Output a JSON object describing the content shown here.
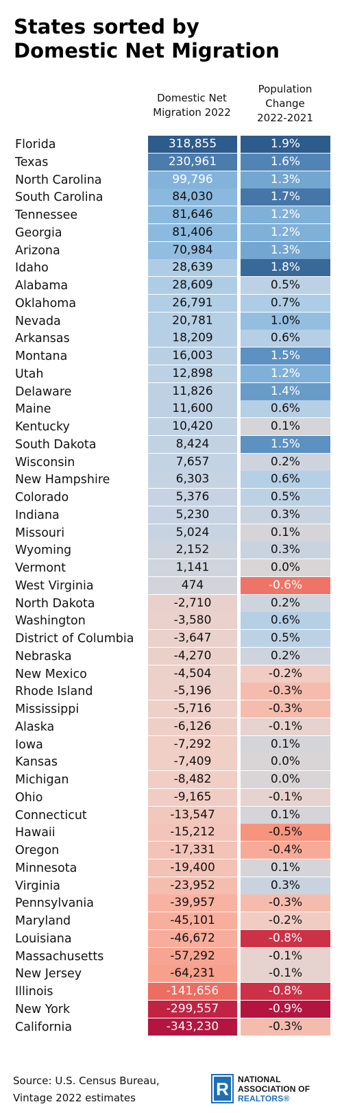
{
  "title_line1": "States sorted by",
  "title_line2": "Domestic Net Migration",
  "header_migration_line1": "Domestic Net",
  "header_migration_line2": "Migration 2022",
  "header_population_line1": "Population",
  "header_population_line2": "Change",
  "header_population_line3": "2022-2021",
  "source_line1": "Source: U.S. Census Bureau,",
  "source_line2": "Vintage 2022 estimates",
  "logo": {
    "line1": "NATIONAL",
    "line2": "ASSOCIATION OF",
    "line3": "REALTORS®",
    "mark": "R"
  },
  "colors": {
    "positive_dark": "#2d5b8c",
    "negative_dark": "#b41540",
    "neutral": "#dcd6d8"
  },
  "chart_data": {
    "type": "table",
    "title": "States sorted by Domestic Net Migration",
    "columns": [
      "Domestic Net Migration 2022",
      "Population Change 2022-2021"
    ],
    "rows": [
      {
        "state": "Florida",
        "migration": "318,855",
        "migration_value": 318855,
        "pop_change": "1.9%",
        "pop_value": 1.9
      },
      {
        "state": "Texas",
        "migration": "230,961",
        "migration_value": 230961,
        "pop_change": "1.6%",
        "pop_value": 1.6
      },
      {
        "state": "North Carolina",
        "migration": "99,796",
        "migration_value": 99796,
        "pop_change": "1.3%",
        "pop_value": 1.3
      },
      {
        "state": "South Carolina",
        "migration": "84,030",
        "migration_value": 84030,
        "pop_change": "1.7%",
        "pop_value": 1.7
      },
      {
        "state": "Tennessee",
        "migration": "81,646",
        "migration_value": 81646,
        "pop_change": "1.2%",
        "pop_value": 1.2
      },
      {
        "state": "Georgia",
        "migration": "81,406",
        "migration_value": 81406,
        "pop_change": "1.2%",
        "pop_value": 1.2
      },
      {
        "state": "Arizona",
        "migration": "70,984",
        "migration_value": 70984,
        "pop_change": "1.3%",
        "pop_value": 1.3
      },
      {
        "state": "Idaho",
        "migration": "28,639",
        "migration_value": 28639,
        "pop_change": "1.8%",
        "pop_value": 1.8
      },
      {
        "state": "Alabama",
        "migration": "28,609",
        "migration_value": 28609,
        "pop_change": "0.5%",
        "pop_value": 0.5
      },
      {
        "state": "Oklahoma",
        "migration": "26,791",
        "migration_value": 26791,
        "pop_change": "0.7%",
        "pop_value": 0.7
      },
      {
        "state": "Nevada",
        "migration": "20,781",
        "migration_value": 20781,
        "pop_change": "1.0%",
        "pop_value": 1.0
      },
      {
        "state": "Arkansas",
        "migration": "18,209",
        "migration_value": 18209,
        "pop_change": "0.6%",
        "pop_value": 0.6
      },
      {
        "state": "Montana",
        "migration": "16,003",
        "migration_value": 16003,
        "pop_change": "1.5%",
        "pop_value": 1.5
      },
      {
        "state": "Utah",
        "migration": "12,898",
        "migration_value": 12898,
        "pop_change": "1.2%",
        "pop_value": 1.2
      },
      {
        "state": "Delaware",
        "migration": "11,826",
        "migration_value": 11826,
        "pop_change": "1.4%",
        "pop_value": 1.4
      },
      {
        "state": "Maine",
        "migration": "11,600",
        "migration_value": 11600,
        "pop_change": "0.6%",
        "pop_value": 0.6
      },
      {
        "state": "Kentucky",
        "migration": "10,420",
        "migration_value": 10420,
        "pop_change": "0.1%",
        "pop_value": 0.1
      },
      {
        "state": "South Dakota",
        "migration": "8,424",
        "migration_value": 8424,
        "pop_change": "1.5%",
        "pop_value": 1.5
      },
      {
        "state": "Wisconsin",
        "migration": "7,657",
        "migration_value": 7657,
        "pop_change": "0.2%",
        "pop_value": 0.2
      },
      {
        "state": "New Hampshire",
        "migration": "6,303",
        "migration_value": 6303,
        "pop_change": "0.6%",
        "pop_value": 0.6
      },
      {
        "state": "Colorado",
        "migration": "5,376",
        "migration_value": 5376,
        "pop_change": "0.5%",
        "pop_value": 0.5
      },
      {
        "state": "Indiana",
        "migration": "5,230",
        "migration_value": 5230,
        "pop_change": "0.3%",
        "pop_value": 0.3
      },
      {
        "state": "Missouri",
        "migration": "5,024",
        "migration_value": 5024,
        "pop_change": "0.1%",
        "pop_value": 0.1
      },
      {
        "state": "Wyoming",
        "migration": "2,152",
        "migration_value": 2152,
        "pop_change": "0.3%",
        "pop_value": 0.3
      },
      {
        "state": "Vermont",
        "migration": "1,141",
        "migration_value": 1141,
        "pop_change": "0.0%",
        "pop_value": 0.0
      },
      {
        "state": "West Virginia",
        "migration": "474",
        "migration_value": 474,
        "pop_change": "-0.6%",
        "pop_value": -0.6
      },
      {
        "state": "North Dakota",
        "migration": "-2,710",
        "migration_value": -2710,
        "pop_change": "0.2%",
        "pop_value": 0.2
      },
      {
        "state": "Washington",
        "migration": "-3,580",
        "migration_value": -3580,
        "pop_change": "0.6%",
        "pop_value": 0.6
      },
      {
        "state": "District of Columbia",
        "migration": "-3,647",
        "migration_value": -3647,
        "pop_change": "0.5%",
        "pop_value": 0.5
      },
      {
        "state": "Nebraska",
        "migration": "-4,270",
        "migration_value": -4270,
        "pop_change": "0.2%",
        "pop_value": 0.2
      },
      {
        "state": "New Mexico",
        "migration": "-4,504",
        "migration_value": -4504,
        "pop_change": "-0.2%",
        "pop_value": -0.2
      },
      {
        "state": "Rhode Island",
        "migration": "-5,196",
        "migration_value": -5196,
        "pop_change": "-0.3%",
        "pop_value": -0.3
      },
      {
        "state": "Mississippi",
        "migration": "-5,716",
        "migration_value": -5716,
        "pop_change": "-0.3%",
        "pop_value": -0.3
      },
      {
        "state": "Alaska",
        "migration": "-6,126",
        "migration_value": -6126,
        "pop_change": "-0.1%",
        "pop_value": -0.1
      },
      {
        "state": "Iowa",
        "migration": "-7,292",
        "migration_value": -7292,
        "pop_change": "0.1%",
        "pop_value": 0.1
      },
      {
        "state": "Kansas",
        "migration": "-7,409",
        "migration_value": -7409,
        "pop_change": "0.0%",
        "pop_value": 0.0
      },
      {
        "state": "Michigan",
        "migration": "-8,482",
        "migration_value": -8482,
        "pop_change": "0.0%",
        "pop_value": 0.0
      },
      {
        "state": "Ohio",
        "migration": "-9,165",
        "migration_value": -9165,
        "pop_change": "-0.1%",
        "pop_value": -0.1
      },
      {
        "state": "Connecticut",
        "migration": "-13,547",
        "migration_value": -13547,
        "pop_change": "0.1%",
        "pop_value": 0.1
      },
      {
        "state": "Hawaii",
        "migration": "-15,212",
        "migration_value": -15212,
        "pop_change": "-0.5%",
        "pop_value": -0.5
      },
      {
        "state": "Oregon",
        "migration": "-17,331",
        "migration_value": -17331,
        "pop_change": "-0.4%",
        "pop_value": -0.4
      },
      {
        "state": "Minnesota",
        "migration": "-19,400",
        "migration_value": -19400,
        "pop_change": "0.1%",
        "pop_value": 0.1
      },
      {
        "state": "Virginia",
        "migration": "-23,952",
        "migration_value": -23952,
        "pop_change": "0.3%",
        "pop_value": 0.3
      },
      {
        "state": "Pennsylvania",
        "migration": "-39,957",
        "migration_value": -39957,
        "pop_change": "-0.3%",
        "pop_value": -0.3
      },
      {
        "state": "Maryland",
        "migration": "-45,101",
        "migration_value": -45101,
        "pop_change": "-0.2%",
        "pop_value": -0.2
      },
      {
        "state": "Louisiana",
        "migration": "-46,672",
        "migration_value": -46672,
        "pop_change": "-0.8%",
        "pop_value": -0.8
      },
      {
        "state": "Massachusetts",
        "migration": "-57,292",
        "migration_value": -57292,
        "pop_change": "-0.1%",
        "pop_value": -0.1
      },
      {
        "state": "New Jersey",
        "migration": "-64,231",
        "migration_value": -64231,
        "pop_change": "-0.1%",
        "pop_value": -0.1
      },
      {
        "state": "Illinois",
        "migration": "-141,656",
        "migration_value": -141656,
        "pop_change": "-0.8%",
        "pop_value": -0.8
      },
      {
        "state": "New York",
        "migration": "-299,557",
        "migration_value": -299557,
        "pop_change": "-0.9%",
        "pop_value": -0.9
      },
      {
        "state": "California",
        "migration": "-343,230",
        "migration_value": -343230,
        "pop_change": "-0.3%",
        "pop_value": -0.3
      }
    ]
  }
}
